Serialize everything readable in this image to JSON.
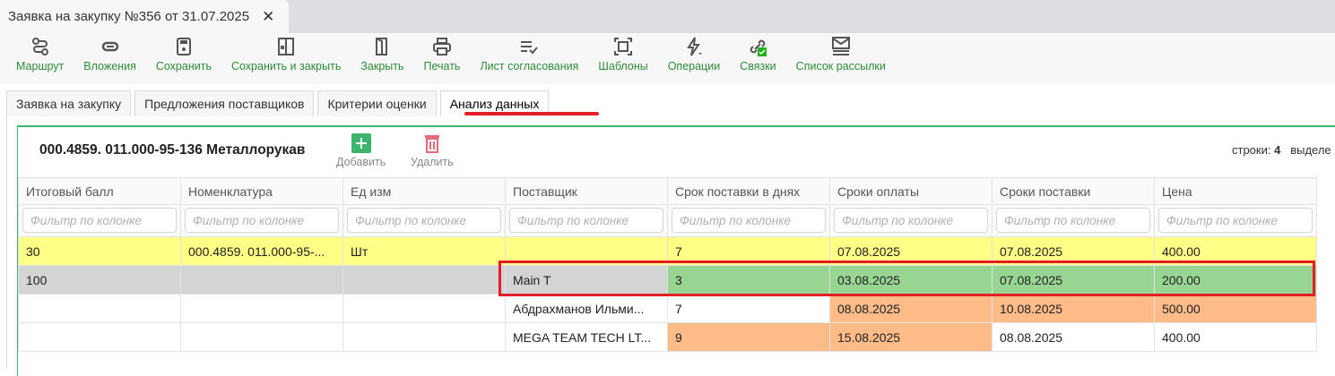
{
  "window_tab": {
    "title": "Заявка на закупку №356 от 31.07.2025",
    "close": "✕"
  },
  "toolbar": [
    {
      "label": "Маршрут",
      "icon": "route-icon"
    },
    {
      "label": "Вложения",
      "icon": "paperclip-icon"
    },
    {
      "label": "Сохранить",
      "icon": "save-icon"
    },
    {
      "label": "Сохранить и закрыть",
      "icon": "save-close-icon"
    },
    {
      "label": "Закрыть",
      "icon": "door-icon"
    },
    {
      "label": "Печать",
      "icon": "printer-icon"
    },
    {
      "label": "Лист согласования",
      "icon": "checklist-icon"
    },
    {
      "label": "Шаблоны",
      "icon": "template-icon"
    },
    {
      "label": "Операции",
      "icon": "lightning-icon"
    },
    {
      "label": "Связки",
      "icon": "link-icon"
    },
    {
      "label": "Список рассылки",
      "icon": "mail-list-icon"
    }
  ],
  "tabs": [
    {
      "label": "Заявка на закупку"
    },
    {
      "label": "Предложения поставщиков"
    },
    {
      "label": "Критерии оценки"
    },
    {
      "label": "Анализ данных",
      "active": true
    }
  ],
  "panel": {
    "title": "000.4859. 011.000-95-136 Металлорукав",
    "add": "Добавить",
    "delete": "Удалить",
    "rows_label": "строки:",
    "rows_count": "4",
    "selected_label": "выделе"
  },
  "grid": {
    "columns": [
      "Итоговый балл",
      "Номенклатура",
      "Ед изм",
      "Поставщик",
      "Срок поставки в днях",
      "Сроки оплаты",
      "Сроки поставки",
      "Цена"
    ],
    "filter_placeholder": "Фильтр по колонке",
    "rows": [
      {
        "cells": [
          "30",
          "000.4859. 011.000-95-...",
          "Шт",
          "",
          "7",
          "07.08.2025",
          "07.08.2025",
          "400.00"
        ],
        "colors": [
          "y",
          "y",
          "y",
          "y",
          "y",
          "y",
          "y",
          "y"
        ]
      },
      {
        "cells": [
          "100",
          "",
          "",
          "Main T",
          "3",
          "03.08.2025",
          "07.08.2025",
          "200.00"
        ],
        "colors": [
          "g",
          "g",
          "g",
          "g",
          "gr",
          "gr",
          "gr",
          "gr"
        ]
      },
      {
        "cells": [
          "",
          "",
          "",
          "Абдрахманов Ильми...",
          "7",
          "08.08.2025",
          "10.08.2025",
          "500.00"
        ],
        "colors": [
          "",
          "",
          "",
          "",
          "",
          "o",
          "o",
          "o"
        ]
      },
      {
        "cells": [
          "",
          "",
          "",
          "MEGA TEAM TECH LT...",
          "9",
          "15.08.2025",
          "08.08.2025",
          "400.00"
        ],
        "colors": [
          "",
          "",
          "",
          "",
          "o",
          "o",
          "",
          ""
        ]
      }
    ]
  },
  "colors": {
    "accent": "#2e8b3a",
    "highlight_red": "#e41e26",
    "yellow": "#ffff88",
    "gray": "#d4d4d4",
    "green": "#98d492",
    "orange": "#ffbb88"
  }
}
